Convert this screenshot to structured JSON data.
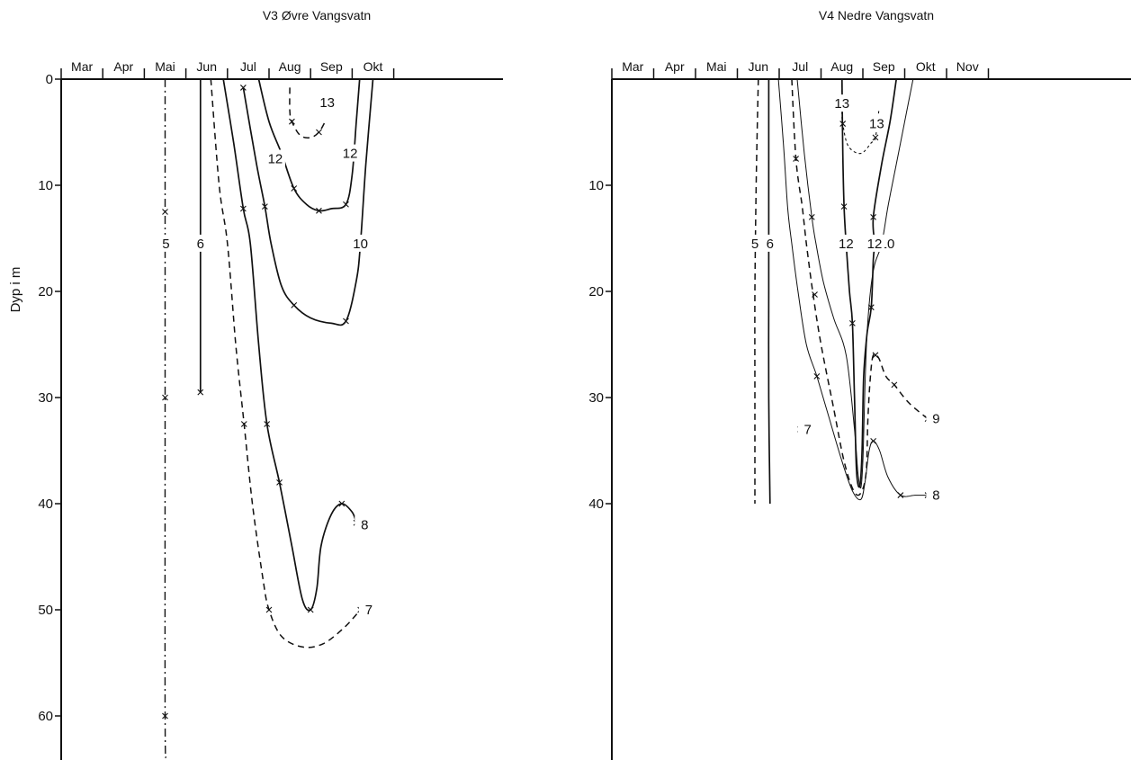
{
  "figure": {
    "ylabel": "Dyp i m",
    "color_ink": "#111111",
    "background": "#ffffff"
  },
  "chart_data": [
    {
      "type": "line",
      "title": "V3  Øvre Vangsvatn",
      "xlabel": "",
      "ylabel": "Dyp i m",
      "x_axis": "time (months)",
      "x_ticks": [
        "Mar",
        "Apr",
        "Mai",
        "Jun",
        "Jul",
        "Aug",
        "Sep",
        "Okt"
      ],
      "xlim": [
        0,
        8.6
      ],
      "ylim": [
        64,
        0
      ],
      "y_ticks": [
        0,
        10,
        20,
        30,
        40,
        50,
        60
      ],
      "y_tick_labels": [
        "0",
        "10",
        "20",
        "30",
        "40",
        "50",
        "60"
      ],
      "grid": false,
      "series": [
        {
          "name": "5",
          "style": "dashdot",
          "points": [
            [
              2.5,
              0
            ],
            [
              2.5,
              12.5
            ],
            [
              2.5,
              30
            ],
            [
              2.5,
              60
            ],
            [
              2.52,
              64
            ]
          ],
          "markers": [
            [
              2.5,
              12.5
            ],
            [
              2.5,
              30
            ],
            [
              2.5,
              60
            ]
          ],
          "label": {
            "text": "5",
            "x": 2.52,
            "y": 15.5
          }
        },
        {
          "name": "6",
          "style": "solid",
          "points": [
            [
              3.35,
              0
            ],
            [
              3.35,
              15
            ],
            [
              3.35,
              29.5
            ]
          ],
          "markers": [
            [
              3.35,
              29.5
            ]
          ],
          "label": {
            "text": "6",
            "x": 3.35,
            "y": 15.5
          }
        },
        {
          "name": "7",
          "style": "dashed",
          "points": [
            [
              3.6,
              0
            ],
            [
              3.8,
              10
            ],
            [
              4.0,
              15.5
            ],
            [
              4.2,
              25
            ],
            [
              4.4,
              32.5
            ],
            [
              4.6,
              40
            ],
            [
              4.85,
              47
            ],
            [
              5.0,
              50
            ],
            [
              5.3,
              52.5
            ],
            [
              5.8,
              53.5
            ],
            [
              6.3,
              53.2
            ],
            [
              6.8,
              51.7
            ],
            [
              7.2,
              50
            ]
          ],
          "markers": [
            [
              4.4,
              32.5
            ],
            [
              5.0,
              50
            ],
            [
              7.2,
              50
            ]
          ],
          "label": {
            "text": "7",
            "x": 7.4,
            "y": 50
          }
        },
        {
          "name": "8",
          "style": "solid",
          "points": [
            [
              3.9,
              0
            ],
            [
              4.15,
              6
            ],
            [
              4.38,
              12.2
            ],
            [
              4.55,
              15.5
            ],
            [
              4.75,
              25
            ],
            [
              4.95,
              32.5
            ],
            [
              5.25,
              38
            ],
            [
              5.55,
              44
            ],
            [
              5.8,
              49
            ],
            [
              6.0,
              50
            ],
            [
              6.15,
              48
            ],
            [
              6.25,
              44
            ],
            [
              6.5,
              41
            ],
            [
              6.75,
              40
            ],
            [
              7.0,
              40.8
            ],
            [
              7.1,
              41.8
            ]
          ],
          "markers": [
            [
              4.38,
              12.2
            ],
            [
              4.95,
              32.5
            ],
            [
              5.25,
              38
            ],
            [
              6.0,
              50
            ],
            [
              6.75,
              40
            ],
            [
              7.1,
              41.8
            ]
          ],
          "label": {
            "text": "8",
            "x": 7.3,
            "y": 42
          }
        },
        {
          "name": "10",
          "style": "solid",
          "points": [
            [
              4.38,
              0.8
            ],
            [
              4.7,
              8
            ],
            [
              4.9,
              12
            ],
            [
              5.05,
              15.5
            ],
            [
              5.3,
              19.5
            ],
            [
              5.6,
              21.3
            ],
            [
              6.0,
              22.5
            ],
            [
              6.5,
              23
            ],
            [
              6.85,
              22.8
            ],
            [
              7.1,
              19
            ],
            [
              7.2,
              15.5
            ],
            [
              7.33,
              8
            ],
            [
              7.5,
              0
            ]
          ],
          "markers": [
            [
              4.38,
              0.8
            ],
            [
              4.9,
              12
            ],
            [
              5.6,
              21.3
            ],
            [
              6.85,
              22.8
            ]
          ],
          "label": {
            "text": "10",
            "x": 7.2,
            "y": 15.5
          }
        },
        {
          "name": "12",
          "style": "solid",
          "points": [
            [
              4.75,
              0
            ],
            [
              5.0,
              4
            ],
            [
              5.3,
              7
            ],
            [
              5.6,
              10.3
            ],
            [
              5.9,
              11.8
            ],
            [
              6.2,
              12.4
            ],
            [
              6.5,
              12.2
            ],
            [
              6.85,
              11.8
            ],
            [
              7.0,
              9
            ],
            [
              7.1,
              4
            ],
            [
              7.18,
              0
            ]
          ],
          "markers": [
            [
              5.6,
              10.3
            ],
            [
              6.2,
              12.4
            ],
            [
              6.85,
              11.8
            ]
          ],
          "label_positions": [
            [
              5.15,
              7.5
            ],
            [
              6.95,
              7.0
            ]
          ],
          "label": {
            "text": "12",
            "x": 5.15,
            "y": 7.5
          }
        },
        {
          "name": "13",
          "style": "dashed",
          "points": [
            [
              5.5,
              0.8
            ],
            [
              5.5,
              3
            ],
            [
              5.55,
              4
            ],
            [
              5.75,
              5.3
            ],
            [
              6.0,
              5.5
            ],
            [
              6.2,
              5
            ],
            [
              6.35,
              4
            ]
          ],
          "markers": [
            [
              5.55,
              4
            ],
            [
              6.2,
              5
            ]
          ],
          "label": {
            "text": "13",
            "x": 6.4,
            "y": 2.2
          }
        }
      ]
    },
    {
      "type": "line",
      "title": "V4  Nedre Vangsvatn",
      "xlabel": "",
      "ylabel": "",
      "x_axis": "time (months)",
      "x_ticks": [
        "Mar",
        "Apr",
        "Mai",
        "Jun",
        "Jul",
        "Aug",
        "Sep",
        "Okt",
        "Nov"
      ],
      "xlim": [
        0,
        9.2
      ],
      "ylim": [
        64,
        0
      ],
      "y_ticks": [
        10,
        20,
        30,
        40
      ],
      "y_tick_labels": [
        "10",
        "20",
        "30",
        "40"
      ],
      "grid": false,
      "series": [
        {
          "name": "5",
          "style": "dashed",
          "points": [
            [
              3.5,
              0
            ],
            [
              3.45,
              10
            ],
            [
              3.42,
              20
            ],
            [
              3.42,
              30
            ],
            [
              3.42,
              40
            ]
          ],
          "markers": [],
          "label": {
            "text": "5",
            "x": 3.42,
            "y": 15.5
          }
        },
        {
          "name": "6",
          "style": "solid",
          "points": [
            [
              3.75,
              0
            ],
            [
              3.75,
              10
            ],
            [
              3.75,
              20
            ],
            [
              3.75,
              30
            ],
            [
              3.78,
              40
            ]
          ],
          "markers": [],
          "label": {
            "text": "6",
            "x": 3.78,
            "y": 15.5
          }
        },
        {
          "name": "7",
          "style": "marker-only",
          "points": [],
          "markers": [
            [
              4.5,
              33
            ]
          ],
          "label": {
            "text": "7",
            "x": 4.68,
            "y": 33
          }
        },
        {
          "name": "8",
          "style": "thin",
          "points": [
            [
              3.98,
              0
            ],
            [
              4.1,
              6
            ],
            [
              4.2,
              12
            ],
            [
              4.3,
              15.5
            ],
            [
              4.45,
              20
            ],
            [
              4.65,
              25
            ],
            [
              4.9,
              28
            ],
            [
              5.2,
              32
            ],
            [
              5.5,
              36
            ],
            [
              5.75,
              38.8
            ],
            [
              5.95,
              39.6
            ],
            [
              6.05,
              38
            ],
            [
              6.15,
              35
            ],
            [
              6.25,
              34.1
            ],
            [
              6.4,
              35
            ],
            [
              6.6,
              37.5
            ],
            [
              6.9,
              39.2
            ],
            [
              7.25,
              39.2
            ],
            [
              7.55,
              39.2
            ]
          ],
          "markers": [
            [
              4.9,
              28
            ],
            [
              6.25,
              34.1
            ],
            [
              6.9,
              39.2
            ],
            [
              7.55,
              39.2
            ]
          ],
          "label": {
            "text": "8",
            "x": 7.75,
            "y": 39.2
          }
        },
        {
          "name": "9",
          "style": "dashed",
          "points": [
            [
              4.3,
              0
            ],
            [
              4.4,
              7.5
            ],
            [
              4.55,
              12
            ],
            [
              4.65,
              15.5
            ],
            [
              4.8,
              20
            ],
            [
              5.0,
              25
            ],
            [
              5.3,
              31
            ],
            [
              5.55,
              36
            ],
            [
              5.78,
              38.8
            ],
            [
              5.95,
              39
            ],
            [
              6.08,
              37
            ],
            [
              6.12,
              32
            ],
            [
              6.18,
              28
            ],
            [
              6.25,
              26
            ],
            [
              6.38,
              26.3
            ],
            [
              6.55,
              28
            ],
            [
              6.75,
              28.8
            ],
            [
              7.1,
              30.5
            ],
            [
              7.55,
              32
            ]
          ],
          "markers": [
            [
              4.4,
              7.5
            ],
            [
              4.85,
              20.3
            ],
            [
              6.3,
              26
            ],
            [
              6.75,
              28.8
            ],
            [
              7.55,
              32
            ]
          ],
          "label": {
            "text": "9",
            "x": 7.75,
            "y": 32
          }
        },
        {
          "name": "10",
          "style": "thin",
          "points": [
            [
              4.43,
              0
            ],
            [
              4.6,
              7
            ],
            [
              4.78,
              13
            ],
            [
              4.88,
              15.5
            ],
            [
              5.05,
              19
            ],
            [
              5.3,
              22.5
            ],
            [
              5.6,
              26
            ],
            [
              5.8,
              33
            ],
            [
              5.88,
              37
            ],
            [
              5.95,
              38.5
            ],
            [
              6.0,
              36
            ],
            [
              6.05,
              29
            ],
            [
              6.1,
              24
            ],
            [
              6.18,
              20
            ],
            [
              6.28,
              17.5
            ],
            [
              6.45,
              15.5
            ],
            [
              6.6,
              12
            ],
            [
              6.8,
              8
            ],
            [
              7.05,
              3
            ],
            [
              7.2,
              0
            ]
          ],
          "markers": [
            [
              4.78,
              13
            ]
          ],
          "label": {
            "text": "10",
            "x": 6.58,
            "y": 15.5
          }
        },
        {
          "name": "12",
          "style": "solid",
          "points": [
            [
              5.5,
              0
            ],
            [
              5.52,
              7
            ],
            [
              5.55,
              12
            ],
            [
              5.6,
              15.5
            ],
            [
              5.68,
              20
            ],
            [
              5.75,
              23
            ],
            [
              5.8,
              30
            ],
            [
              5.85,
              37
            ],
            [
              5.93,
              38.3
            ],
            [
              5.98,
              35
            ],
            [
              6.02,
              28
            ],
            [
              6.1,
              24
            ],
            [
              6.2,
              21.5
            ],
            [
              6.25,
              17
            ],
            [
              6.28,
              15.5
            ],
            [
              6.25,
              13
            ],
            [
              6.45,
              8
            ],
            [
              6.65,
              4
            ],
            [
              6.8,
              0
            ]
          ],
          "markers": [
            [
              5.55,
              12
            ],
            [
              5.75,
              23
            ],
            [
              6.2,
              21.5
            ],
            [
              6.25,
              13
            ]
          ],
          "label_positions": [
            [
              5.6,
              15.5
            ],
            [
              6.28,
              15.5
            ]
          ],
          "label": {
            "text": "12",
            "x": 5.6,
            "y": 15.5
          }
        },
        {
          "name": "13",
          "style": "dotted",
          "points": [
            [
              5.5,
              0.5
            ],
            [
              5.5,
              3
            ],
            [
              5.52,
              4.2
            ],
            [
              5.65,
              6.3
            ],
            [
              5.95,
              7
            ],
            [
              6.2,
              6
            ],
            [
              6.3,
              5.5
            ],
            [
              6.38,
              3
            ]
          ],
          "markers": [
            [
              5.52,
              4.2
            ],
            [
              6.3,
              5.5
            ]
          ],
          "label_positions": [
            [
              5.5,
              2.3
            ],
            [
              6.33,
              4.2
            ]
          ],
          "label": {
            "text": "13",
            "x": 5.5,
            "y": 2.3
          }
        }
      ]
    }
  ]
}
